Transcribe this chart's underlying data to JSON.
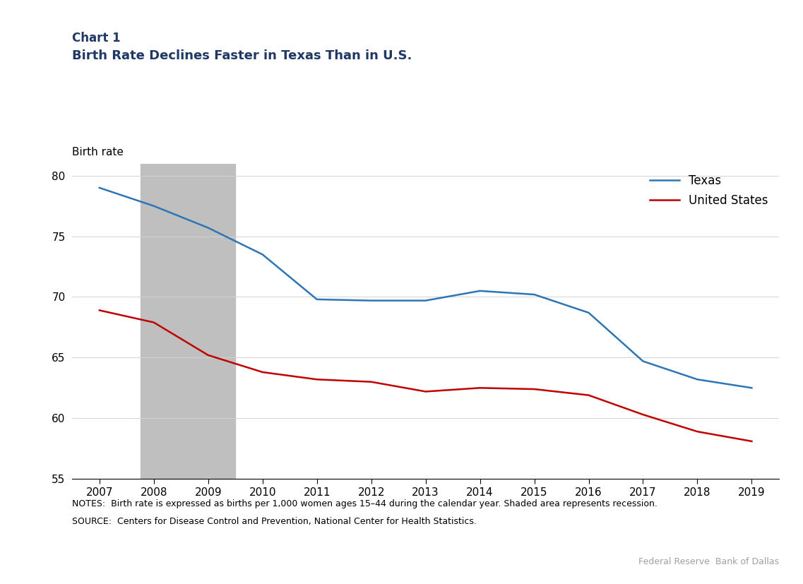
{
  "chart_label": "Chart 1",
  "title": "Birth Rate Declines Faster in Texas Than in U.S.",
  "ylabel": "Birth rate",
  "title_color": "#1F3864",
  "chart_label_color": "#1F3864",
  "years": [
    2007,
    2008,
    2009,
    2010,
    2011,
    2012,
    2013,
    2014,
    2015,
    2016,
    2017,
    2018,
    2019
  ],
  "texas": [
    79.0,
    77.5,
    75.7,
    73.5,
    69.8,
    69.7,
    69.7,
    70.5,
    70.2,
    68.7,
    64.7,
    63.2,
    62.5
  ],
  "us": [
    68.9,
    67.9,
    65.2,
    63.8,
    63.2,
    63.0,
    62.2,
    62.5,
    62.4,
    61.9,
    60.3,
    58.9,
    58.1
  ],
  "texas_color": "#2E75B6",
  "us_color": "#C00000",
  "recession_start": 2007.75,
  "recession_end": 2009.5,
  "recession_color": "#BFBFBF",
  "ylim": [
    55,
    81
  ],
  "yticks": [
    55,
    60,
    65,
    70,
    75,
    80
  ],
  "xlim": [
    2006.5,
    2019.5
  ],
  "legend_labels": [
    "Texas",
    "United States"
  ],
  "notes_line1": "NOTES:  Birth rate is expressed as births per 1,000 women ages 15–44 during the calendar year. Shaded area represents recession.",
  "notes_line2": "SOURCE:  Centers for Disease Control and Prevention, National Center for Health Statistics.",
  "source_credit": "Federal Reserve  Bank of Dallas",
  "line_width": 1.8
}
